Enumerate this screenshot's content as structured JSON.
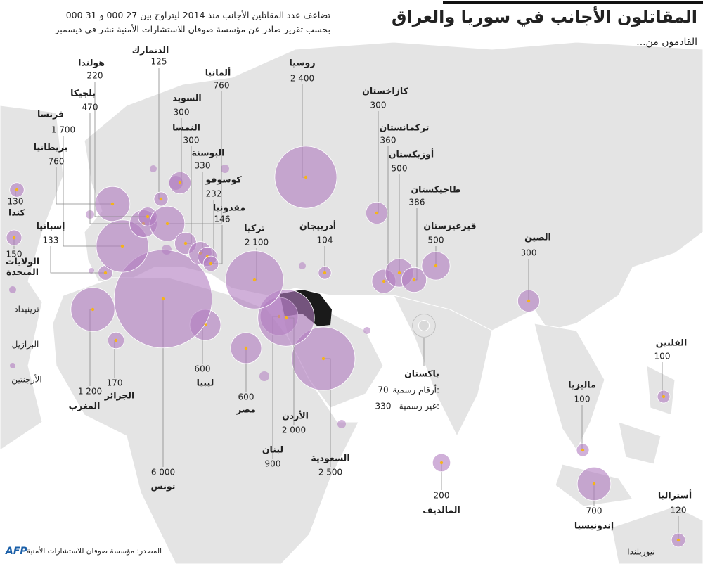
{
  "header": {
    "title": "المقاتلون الأجانب في سوريا والعراق",
    "subtitle_lines": [
      "تضاعف عدد المقاتلين الأجانب منذ 2014 ليتراوح بين 27 000 و 31 000",
      "بحسب تقرير صادر عن مؤسسة صوفان للاستشارات الأمنية نشر في ديسمبر"
    ],
    "intro": "القادمون من..."
  },
  "countries": [
    {
      "name": "روسيا",
      "value": 2400,
      "label": "2 400"
    },
    {
      "name": "كازاخستان",
      "value": 300
    },
    {
      "name": "تركمانستان",
      "value": 360
    },
    {
      "name": "أوزبكستان",
      "value": 500
    },
    {
      "name": "طاجيكستان",
      "value": 386
    },
    {
      "name": "قيرغيزستان",
      "value": 500
    },
    {
      "name": "الصين",
      "value": 300
    },
    {
      "name": "الفلبين",
      "value": 100
    },
    {
      "name": "ماليزيا",
      "value": 100
    },
    {
      "name": "إندونيسيا",
      "value": 700
    },
    {
      "name": "أستراليا",
      "value": 120
    },
    {
      "name": "المالديف",
      "value": 200
    },
    {
      "name": "السعودية",
      "value": 2500,
      "label": "2 500"
    },
    {
      "name": "لبنان",
      "value": 900
    },
    {
      "name": "الأردن",
      "value": 2000,
      "label": "2 000"
    },
    {
      "name": "مصر",
      "value": 600
    },
    {
      "name": "ليبيا",
      "value": 600
    },
    {
      "name": "تونس",
      "value": 6000,
      "label": "6 000"
    },
    {
      "name": "الجزائر",
      "value": 170
    },
    {
      "name": "المغرب",
      "value": 1200,
      "label": "1 200"
    },
    {
      "name": "إسبانيا",
      "value": 133
    },
    {
      "name": "بريطانيا",
      "value": 760
    },
    {
      "name": "فرنسا",
      "value": 1700,
      "label": "1 700"
    },
    {
      "name": "بلجيكا",
      "value": 470
    },
    {
      "name": "هولندا",
      "value": 220
    },
    {
      "name": "الدنمارك",
      "value": 125
    },
    {
      "name": "ألمانيا",
      "value": 760
    },
    {
      "name": "السويد",
      "value": 300
    },
    {
      "name": "النمسا",
      "value": 300
    },
    {
      "name": "البوسنة",
      "value": 330
    },
    {
      "name": "كوسوفو",
      "value": 232
    },
    {
      "name": "مقدونيا",
      "value": 146
    },
    {
      "name": "تركيا",
      "value": 2100,
      "label": "2 100"
    },
    {
      "name": "أذربيجان",
      "value": 104
    },
    {
      "name": "كندا",
      "value": 130
    },
    {
      "name": "الولايات المتحدة",
      "value": 150
    }
  ],
  "pakistan": {
    "name": "باكستان",
    "official_label": "أرقام رسمية:",
    "official": 70,
    "unofficial_label": "غير رسمية:",
    "unofficial": 330
  },
  "unnumbered": [
    "ترينيداد",
    "البرازيل",
    "الأرجنتين",
    "نيوزيلندا"
  ],
  "footer": {
    "source": "المصدر: مؤسسة صوفان للاستشارات الأمنية",
    "logo": "AFP"
  }
}
